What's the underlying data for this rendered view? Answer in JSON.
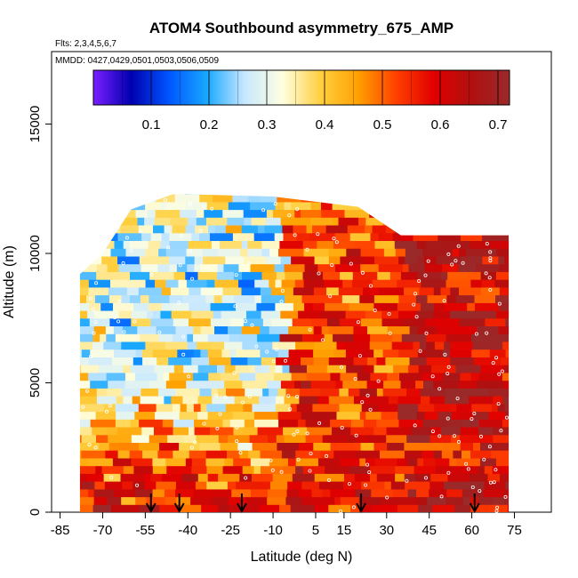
{
  "chart_data": {
    "type": "heatmap",
    "title": "ATOM4 Southbound asymmetry_675_AMP",
    "subtitle_flights": "Flts: 2,3,4,5,6,7",
    "subtitle_dates": "MMDD: 0427,0429,0501,0503,0506,0509",
    "xlabel": "Latitude (deg N)",
    "ylabel": "Altitude (m)",
    "xlim": [
      -88,
      88
    ],
    "ylim": [
      0,
      17800
    ],
    "x_ticks": [
      -85,
      -70,
      -55,
      -40,
      -25,
      -10,
      5,
      15,
      30,
      45,
      60,
      75
    ],
    "x_tick_labels": [
      "-85",
      "-70",
      "-55",
      "-40",
      "-25",
      "-10",
      "5",
      "15",
      "30",
      "45",
      "60",
      "75"
    ],
    "y_ticks": [
      0,
      5000,
      10000,
      15000
    ],
    "y_tick_labels": [
      "0",
      "5000",
      "10000",
      "15000"
    ],
    "colorbar": {
      "min": 0.0,
      "max": 0.72,
      "ticks": [
        0.1,
        0.2,
        0.3,
        0.4,
        0.5,
        0.6,
        0.7
      ],
      "tick_labels": [
        "0.1",
        "0.2",
        "0.3",
        "0.4",
        "0.5",
        "0.6",
        "0.7"
      ],
      "gradient": [
        "#7a1fff",
        "#0000b0",
        "#0055ff",
        "#19a8ff",
        "#c8e8ff",
        "#ffffe0",
        "#ffd040",
        "#ffa000",
        "#ff4000",
        "#e00000",
        "#b01010",
        "#9a2a2a"
      ]
    },
    "profile_arrows_lat": [
      -53,
      -43,
      -21,
      21,
      61
    ],
    "coverage": {
      "lat_min": -78,
      "lat_max": 73,
      "top_alt_by_lat": [
        [
          -78,
          9200
        ],
        [
          -70,
          10000
        ],
        [
          -60,
          11700
        ],
        [
          -45,
          12300
        ],
        [
          -10,
          12200
        ],
        [
          20,
          11800
        ],
        [
          35,
          10700
        ],
        [
          55,
          10700
        ],
        [
          73,
          10700
        ]
      ]
    }
  }
}
